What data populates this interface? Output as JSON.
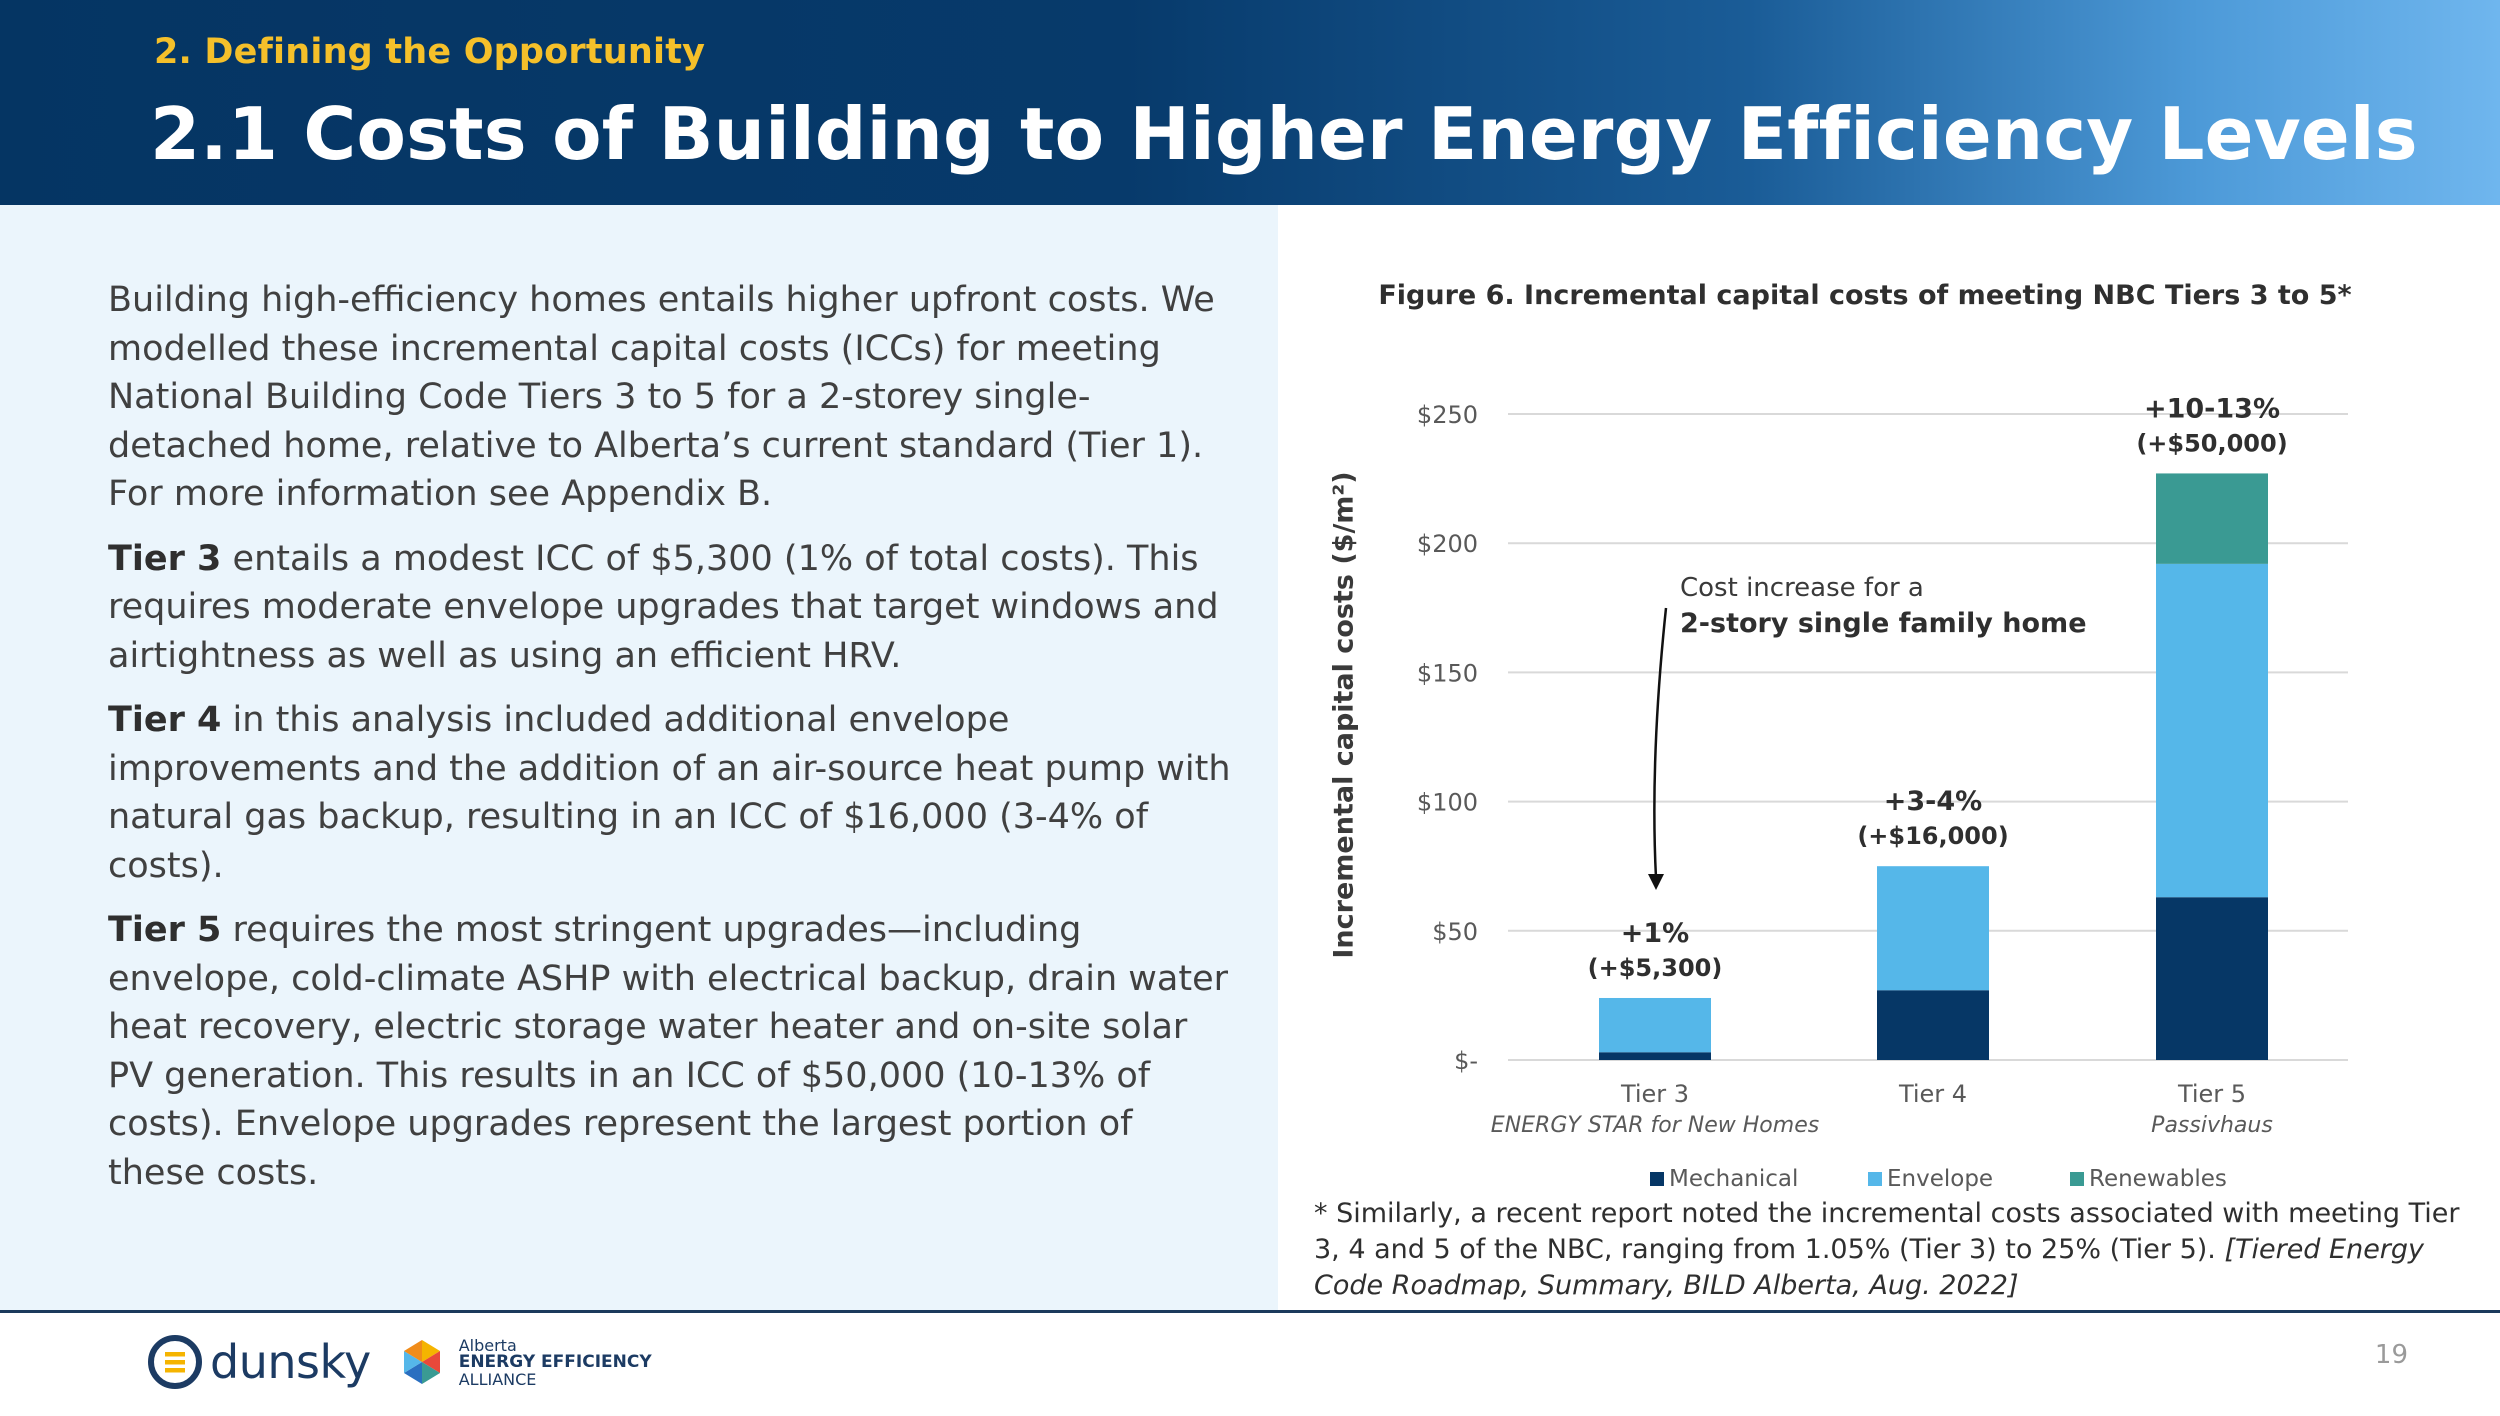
{
  "header": {
    "section_label": "2. Defining the Opportunity",
    "title": "2.1 Costs of Building to Higher Energy Efficiency Levels"
  },
  "body": {
    "intro": "Building high-efficiency homes entails higher upfront costs. We modelled these incremental capital costs (ICCs) for meeting National Building Code Tiers 3 to 5 for a 2-storey single-detached home, relative to Alberta’s current standard (Tier 1). For more information see Appendix B.",
    "tier3_label": "Tier 3",
    "tier3_text": " entails a modest ICC of $5,300 (1% of total costs). This requires moderate envelope upgrades that target windows and airtightness as well as using an efficient HRV.",
    "tier4_label": "Tier 4",
    "tier4_text": " in this analysis included additional envelope improvements and the addition of an air-source heat pump with natural gas backup, resulting in an ICC of $16,000 (3-4% of costs).",
    "tier5_label": "Tier 5",
    "tier5_text": " requires the most stringent upgrades—including envelope, cold-climate ASHP with electrical backup, drain water heat recovery, electric storage water heater and on-site solar PV generation. This results in an ICC of $50,000 (10-13% of costs).  Envelope upgrades represent the largest portion of these costs."
  },
  "figure": {
    "title": "Figure 6. Incremental capital costs of meeting NBC Tiers 3 to 5*"
  },
  "footnote": {
    "text": "* Similarly, a recent report noted the incremental costs associated with meeting Tier 3, 4 and 5 of the NBC, ranging from 1.05% (Tier 3) to 25% (Tier 5).  ",
    "citation": "[Tiered Energy Code Roadmap, Summary, BILD Alberta, Aug. 2022]"
  },
  "footer": {
    "logo_dunsky": "dunsky",
    "logo_aeea_line1": "Alberta",
    "logo_aeea_line2": "ENERGY EFFICIENCY",
    "logo_aeea_line3": "ALLIANCE",
    "page_number": "19"
  },
  "colors": {
    "mechanical": "#063766",
    "envelope": "#55b7e9",
    "renewables": "#3a9a93",
    "gridline": "#d9d9d9",
    "axis_text": "#595959"
  },
  "chart_data": {
    "type": "bar",
    "stacked": true,
    "title": "Figure 6. Incremental capital costs of meeting NBC Tiers 3 to 5*",
    "ylabel": "Incremental capital costs ($/m²)",
    "xlabel": "",
    "ylim": [
      0,
      250
    ],
    "yticks": [
      0,
      50,
      100,
      150,
      200,
      250
    ],
    "ytick_labels": [
      "$-",
      "$50",
      "$100",
      "$150",
      "$200",
      "$250"
    ],
    "categories": [
      "Tier 3",
      "Tier 4",
      "Tier 5"
    ],
    "category_sublabels": [
      "ENERGY STAR for New Homes",
      "",
      "Passivhaus"
    ],
    "series": [
      {
        "name": "Mechanical",
        "values": [
          3,
          27,
          63
        ]
      },
      {
        "name": "Envelope",
        "values": [
          21,
          48,
          129
        ]
      },
      {
        "name": "Renewables",
        "values": [
          0,
          0,
          35
        ]
      }
    ],
    "data_labels": [
      {
        "line1": "+1%",
        "line2": "(+$5,300)"
      },
      {
        "line1": "+3-4%",
        "line2": "(+$16,000)"
      },
      {
        "line1": "+10-13%",
        "line2": "(+$50,000)"
      }
    ],
    "annotation": {
      "line1": "Cost increase for a",
      "line2": "2-story single family home"
    },
    "legend_position": "bottom",
    "grid": true
  }
}
